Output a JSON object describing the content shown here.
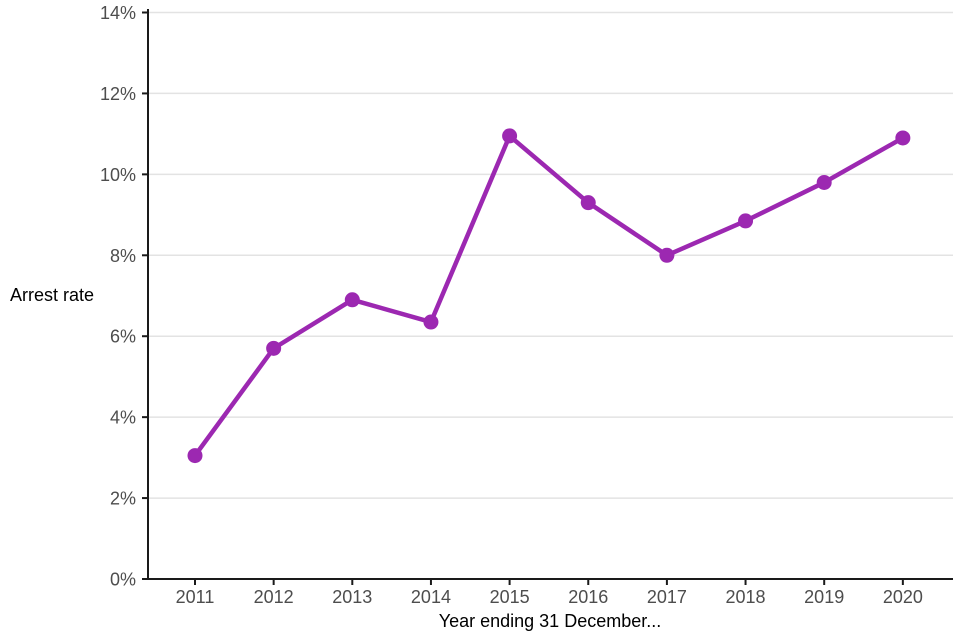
{
  "chart_data": {
    "type": "line",
    "title": "",
    "xlabel": "Year ending 31 December...",
    "ylabel": "Arrest rate",
    "categories": [
      "2011",
      "2012",
      "2013",
      "2014",
      "2015",
      "2016",
      "2017",
      "2018",
      "2019",
      "2020"
    ],
    "series": [
      {
        "name": "Arrest rate",
        "values": [
          3.05,
          5.7,
          6.9,
          6.35,
          10.95,
          9.3,
          8.0,
          8.85,
          9.8,
          10.9
        ]
      }
    ],
    "ylim": [
      0,
      14
    ],
    "ytick_step": 2,
    "ytick_labels": [
      "0%",
      "2%",
      "4%",
      "6%",
      "8%",
      "10%",
      "12%",
      "14%"
    ],
    "grid": "horizontal",
    "legend": "none",
    "colors": {
      "line": "#9c28b1",
      "point": "#9c28b1",
      "grid": "#e3e3e3",
      "axis": "#1a1a1a",
      "tick_text": "#4d4d4d",
      "title_text": "#000000",
      "background": "#ffffff"
    }
  }
}
